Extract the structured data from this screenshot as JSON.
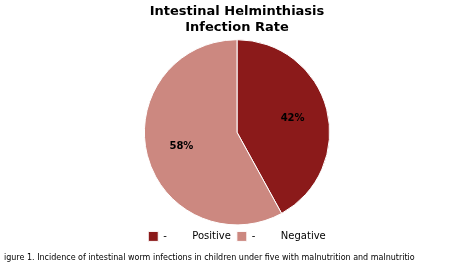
{
  "chart_data": {
    "type": "pie",
    "title": "Intestinal Helminthiasis\nInfection Rate",
    "categories": [
      "-        Positive",
      "-        Negative"
    ],
    "values": [
      42,
      58
    ],
    "value_labels": [
      "42%",
      "58%"
    ],
    "data_labels": true,
    "colors": [
      "#8B1A1A",
      "#CC8880"
    ],
    "legend": "bottom",
    "caption": "igure 1. Incidence of intestinal worm infections in children under five with malnutrition and malnutritio"
  }
}
